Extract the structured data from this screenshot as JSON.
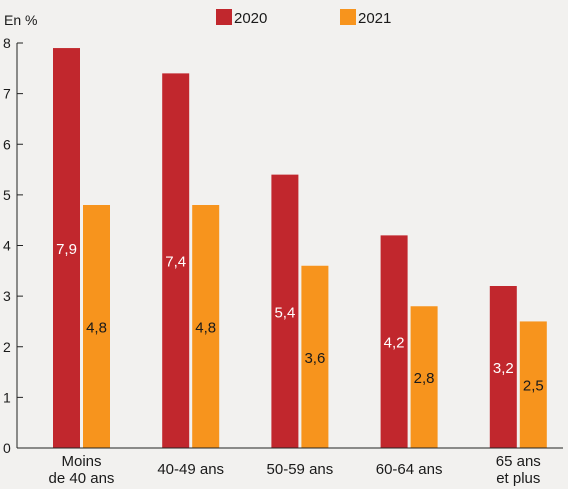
{
  "chart_data": {
    "type": "bar",
    "unit_label": "En %",
    "categories": [
      [
        "Moins",
        "de 40 ans"
      ],
      [
        "40-49 ans"
      ],
      [
        "50-59 ans"
      ],
      [
        "60-64 ans"
      ],
      [
        "65 ans",
        "et plus"
      ]
    ],
    "series": [
      {
        "name": "2020",
        "color": "#c1272d",
        "values": [
          7.9,
          7.4,
          5.4,
          4.2,
          3.2
        ],
        "labels": [
          "7,9",
          "7,4",
          "5,4",
          "4,2",
          "3,2"
        ],
        "label_color": "#ffffff"
      },
      {
        "name": "2021",
        "color": "#f7941d",
        "values": [
          4.8,
          4.8,
          3.6,
          2.8,
          2.5
        ],
        "labels": [
          "4,8",
          "4,8",
          "3,6",
          "2,8",
          "2,5"
        ],
        "label_color": "#1a1a1a"
      }
    ],
    "ylim": [
      0,
      8
    ],
    "yticks": [
      "0",
      "1",
      "2",
      "3",
      "4",
      "5",
      "6",
      "7",
      "8"
    ],
    "grid": false,
    "legend_position": "top-center"
  }
}
